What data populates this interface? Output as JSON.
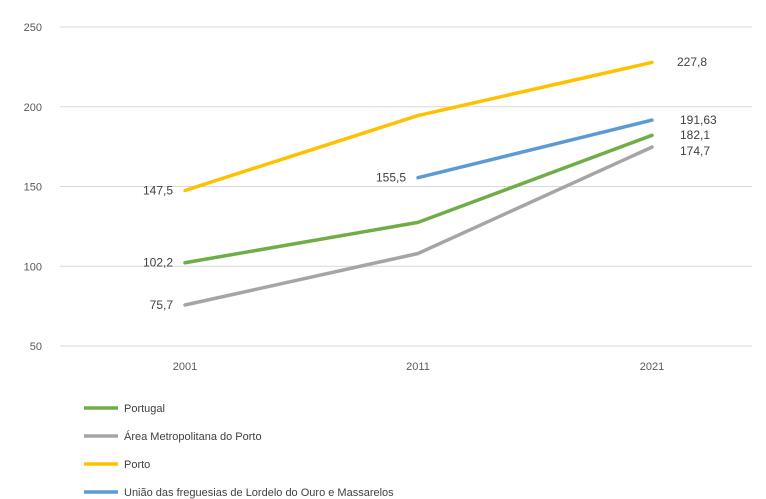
{
  "chart_data": {
    "type": "line",
    "categories": [
      "2001",
      "2011",
      "2021"
    ],
    "ylim": [
      50,
      250
    ],
    "y_ticks": [
      "250",
      "200",
      "150",
      "100",
      "50"
    ],
    "grid": true,
    "legend_position": "bottom-left",
    "series": [
      {
        "name": "Portugal",
        "color": "#70ad47",
        "values": [
          102.2,
          127.5,
          182.1
        ],
        "labels": [
          "102,2",
          "",
          "182,1"
        ]
      },
      {
        "name": "Área Metropolitana do Porto",
        "color": "#a5a5a5",
        "values": [
          75.7,
          108.0,
          174.7
        ],
        "labels": [
          "75,7",
          "",
          "174,7"
        ]
      },
      {
        "name": "Porto",
        "color": "#ffc000",
        "values": [
          147.5,
          194.5,
          227.8
        ],
        "labels": [
          "147,5",
          "",
          "227,8"
        ]
      },
      {
        "name": "União das freguesias de Lordelo do Ouro e Massarelos",
        "color": "#5b9bd5",
        "values": [
          null,
          155.5,
          191.63
        ],
        "labels": [
          "",
          "155,5",
          "191,63"
        ]
      }
    ]
  }
}
